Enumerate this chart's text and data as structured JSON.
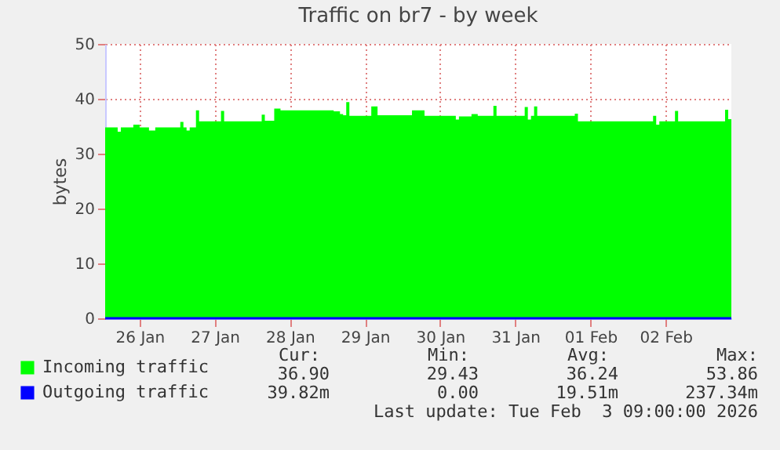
{
  "chart_data": {
    "type": "area",
    "title": "Traffic on br7 - by week",
    "ylabel": "bytes",
    "x": [
      "2026-01-26T01:00",
      "2026-01-26T05:00",
      "2026-01-26T06:00",
      "2026-01-26T10:00",
      "2026-01-26T12:00",
      "2026-01-26T15:00",
      "2026-01-26T17:00",
      "2026-01-26T23:00",
      "2026-01-27T01:00",
      "2026-01-27T02:00",
      "2026-01-27T03:00",
      "2026-01-27T04:00",
      "2026-01-27T06:00",
      "2026-01-27T07:00",
      "2026-01-27T14:00",
      "2026-01-27T15:00",
      "2026-01-28T02:00",
      "2026-01-28T03:00",
      "2026-01-28T04:00",
      "2026-01-28T06:00",
      "2026-01-28T07:00",
      "2026-01-28T09:00",
      "2026-01-28T23:00",
      "2026-01-29T02:00",
      "2026-01-29T04:00",
      "2026-01-29T05:00",
      "2026-01-29T06:00",
      "2026-01-29T07:00",
      "2026-01-29T12:00",
      "2026-01-29T14:00",
      "2026-01-29T16:00",
      "2026-01-30T00:00",
      "2026-01-30T03:00",
      "2026-01-30T06:00",
      "2026-01-30T07:00",
      "2026-01-30T15:00",
      "2026-01-30T17:00",
      "2026-01-30T18:00",
      "2026-01-30T22:00",
      "2026-01-31T00:00",
      "2026-01-31T05:00",
      "2026-01-31T06:00",
      "2026-01-31T13:00",
      "2026-01-31T15:00",
      "2026-01-31T16:00",
      "2026-01-31T17:00",
      "2026-01-31T18:00",
      "2026-01-31T19:00",
      "2026-02-01T05:00",
      "2026-02-01T07:00",
      "2026-02-01T08:00",
      "2026-02-02T08:00",
      "2026-02-02T09:00",
      "2026-02-02T10:00",
      "2026-02-02T15:00",
      "2026-02-02T16:00",
      "2026-02-03T06:00",
      "2026-02-03T07:00",
      "2026-02-03T08:00",
      "2026-02-03T09:00"
    ],
    "series": [
      {
        "name": "Incoming traffic",
        "color": "#00ff00",
        "values": [
          34.8,
          34.0,
          34.8,
          35.3,
          34.8,
          34.2,
          34.8,
          34.8,
          35.8,
          34.8,
          34.2,
          34.8,
          37.9,
          35.9,
          37.8,
          35.9,
          35.9,
          37.1,
          36.0,
          36.0,
          38.2,
          37.9,
          37.9,
          37.7,
          37.2,
          37.0,
          39.4,
          36.9,
          36.9,
          38.6,
          37.0,
          37.0,
          37.9,
          37.9,
          36.9,
          36.9,
          36.2,
          36.8,
          37.2,
          36.9,
          38.7,
          36.9,
          36.9,
          38.5,
          36.2,
          36.9,
          38.6,
          36.9,
          36.9,
          37.3,
          35.9,
          36.9,
          35.3,
          35.9,
          37.8,
          35.9,
          35.9,
          38.0,
          36.3,
          36.9
        ]
      },
      {
        "name": "Outgoing traffic",
        "type": "line",
        "color": "#0000ff",
        "values": [
          0,
          0,
          0,
          0,
          0,
          0,
          0,
          0,
          0,
          0,
          0,
          0,
          0,
          0,
          0,
          0,
          0,
          0,
          0,
          0,
          0,
          0,
          0,
          0,
          0,
          0,
          0,
          0,
          0,
          0,
          0,
          0,
          0,
          0,
          0,
          0,
          0,
          0,
          0,
          0,
          0,
          0,
          0,
          0,
          0,
          0,
          0,
          0,
          0,
          0,
          0,
          0,
          0,
          0,
          0,
          0,
          0,
          0,
          0,
          0
        ]
      }
    ],
    "xlim": [
      "2026-01-26T01:00",
      "2026-02-03T09:00"
    ],
    "xticks": [
      {
        "value": "2026-01-26T12:00",
        "label": "26 Jan"
      },
      {
        "value": "2026-01-27T12:00",
        "label": "27 Jan"
      },
      {
        "value": "2026-01-28T12:00",
        "label": "28 Jan"
      },
      {
        "value": "2026-01-29T12:00",
        "label": "29 Jan"
      },
      {
        "value": "2026-01-30T12:00",
        "label": "30 Jan"
      },
      {
        "value": "2026-01-31T12:00",
        "label": "31 Jan"
      },
      {
        "value": "2026-02-01T12:00",
        "label": "01 Feb"
      },
      {
        "value": "2026-02-02T12:00",
        "label": "02 Feb"
      }
    ],
    "ylim": [
      0,
      50
    ],
    "yticks": [
      0,
      10,
      20,
      30,
      40,
      50
    ],
    "grid": true,
    "legend": "bottom left",
    "annotations": [
      "Cur:",
      "Min:",
      "Avg:",
      "Max:",
      "36.90",
      "29.43",
      "36.24",
      "53.86",
      "39.82m",
      "0.00",
      "19.51m",
      "237.34m",
      "Last update: Tue Feb  3 09:00:00 2026"
    ]
  }
}
